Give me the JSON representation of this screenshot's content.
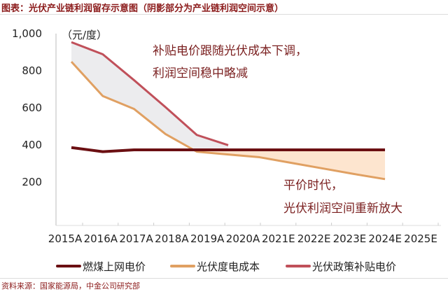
{
  "title": "图表：光伏产业链利润留存示意图（阴影部分为产业链利润空间示意）",
  "source": "资料来源：国家能源局，中金公司研究部",
  "chart_data": {
    "type": "line",
    "unit_label": "（元/度）",
    "categories": [
      "2015A",
      "2016A",
      "2017A",
      "2018A",
      "2019A",
      "2020A",
      "2021E",
      "2022E",
      "2023E",
      "2024E",
      "2025E"
    ],
    "ylim": [
      0,
      1000
    ],
    "yticks": [
      "1,000",
      "800",
      "600",
      "400",
      "200"
    ],
    "ytick_values": [
      1000,
      800,
      600,
      400,
      200
    ],
    "grid": false,
    "legend_position": "bottom",
    "series": [
      {
        "name": "燃煤上网电价",
        "color": "#6b0f12",
        "values": [
          382,
          360,
          370,
          370,
          370,
          370,
          370,
          370,
          370,
          370,
          370
        ]
      },
      {
        "name": "光伏度电成本",
        "color": "#e0a062",
        "values": [
          845,
          660,
          590,
          455,
          360,
          345,
          330,
          300,
          270,
          240,
          212
        ]
      },
      {
        "name": "光伏政策补贴电价",
        "color": "#c0505a",
        "values": [
          950,
          885,
          745,
          600,
          450,
          395,
          null,
          null,
          null,
          null,
          null
        ]
      }
    ],
    "shading": {
      "subsidy_band_color": "#ececee",
      "parity_band_color": "#fde5cf"
    },
    "annotations": [
      "补贴电价跟随光伏成本下调，",
      "利润空间稳中略减",
      "平价时代，",
      "光伏利润空间重新放大"
    ]
  }
}
